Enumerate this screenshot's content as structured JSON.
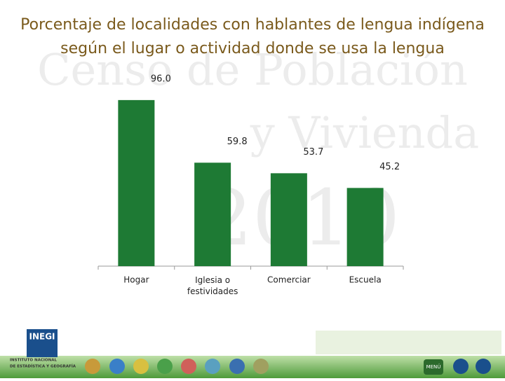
{
  "chart_data": {
    "type": "bar",
    "title": "Porcentaje de localidades con hablantes de lengua indígena",
    "subtitle": "según el lugar o actividad donde se usa la lengua",
    "categories": [
      "Hogar",
      "Iglesia o festividades",
      "Comerciar",
      "Escuela"
    ],
    "values": [
      96.0,
      59.8,
      53.7,
      45.2
    ],
    "value_labels": [
      "96.0",
      "59.8",
      "53.7",
      "45.2"
    ],
    "color": "#1e7a34"
  },
  "watermark": [
    "Censo de Población",
    "y Vivienda",
    "2010"
  ],
  "footer": {
    "logo": "INEGI",
    "institute": [
      "INSTITUTO NACIONAL",
      "DE ESTADÍSTICA Y GEOGRAFÍA"
    ],
    "menu": "MENÚ"
  }
}
